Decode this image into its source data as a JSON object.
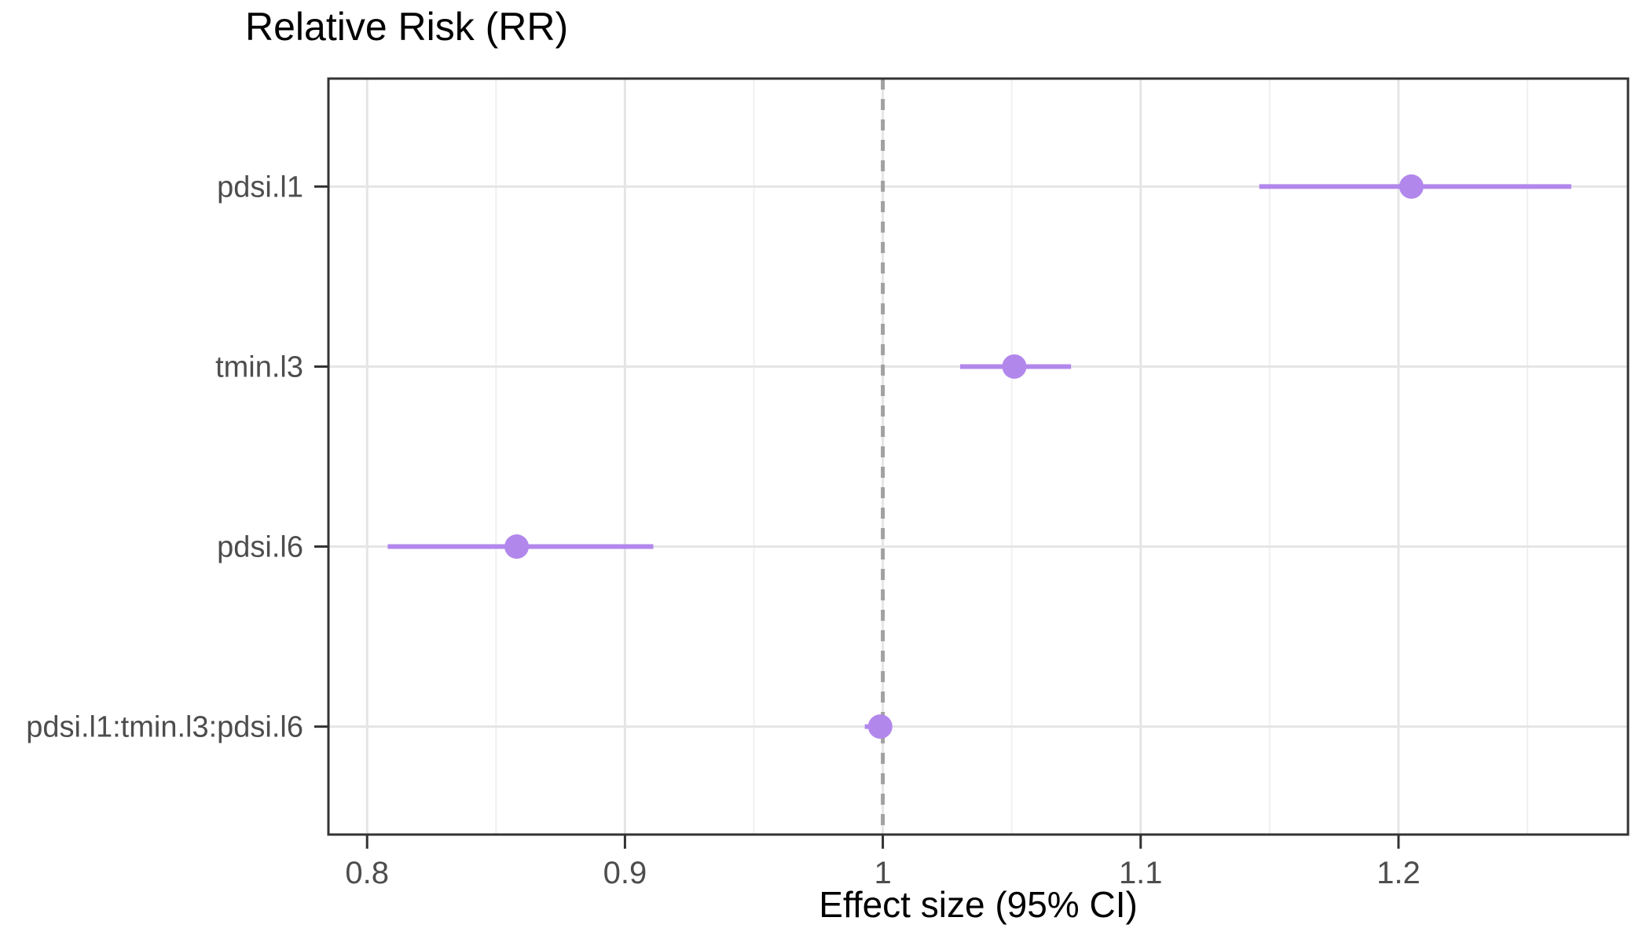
{
  "title": "Relative Risk (RR)",
  "xlabel": "Effect size (95% CI)",
  "colors": {
    "background": "#FFFFFF",
    "point": "#B287EC",
    "ci_line": "#B287EC",
    "reference_line": "#A1A1A1",
    "grid_major": "#E5E5E5",
    "grid_minor": "#F0F0F0",
    "panel_border": "#333333",
    "tick_mark": "#333333",
    "axis_text": "#4D4D4D",
    "title_text": "#000000"
  },
  "chart_data": {
    "type": "scatter",
    "subtype": "forest-plot-dot-whisker",
    "title": "Relative Risk (RR)",
    "xlabel": "Effect size (95% CI)",
    "ylabel": "",
    "legend": "none",
    "grid": true,
    "categories": [
      "pdsi.l1",
      "tmin.l3",
      "pdsi.l6",
      "pdsi.l1:tmin.l3:pdsi.l6"
    ],
    "points": [
      {
        "label": "pdsi.l1",
        "estimate": 1.205,
        "ci_low": 1.146,
        "ci_high": 1.267
      },
      {
        "label": "tmin.l3",
        "estimate": 1.051,
        "ci_low": 1.03,
        "ci_high": 1.073
      },
      {
        "label": "pdsi.l6",
        "estimate": 0.858,
        "ci_low": 0.808,
        "ci_high": 0.911
      },
      {
        "label": "pdsi.l1:tmin.l3:pdsi.l6",
        "estimate": 0.999,
        "ci_low": 0.993,
        "ci_high": 1.003
      }
    ],
    "x_ticks": [
      0.8,
      0.9,
      1,
      1.1,
      1.2
    ],
    "x_tick_labels": [
      "0.8",
      "0.9",
      "1",
      "1.1",
      "1.2"
    ],
    "x_minor_ticks": [
      0.85,
      0.95,
      1.05,
      1.15,
      1.25
    ],
    "xlim": [
      0.785,
      1.289
    ],
    "reference_line_x": 1
  }
}
